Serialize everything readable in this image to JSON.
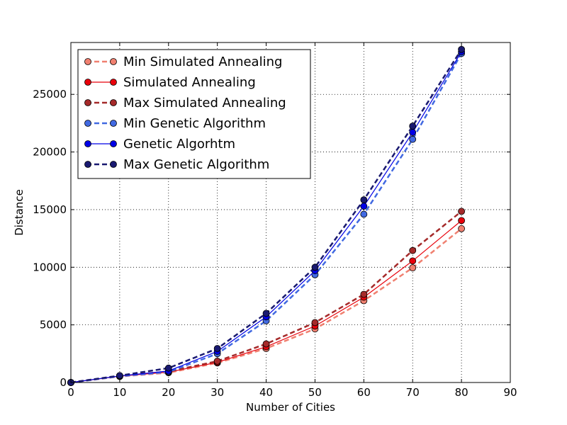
{
  "chart_data": {
    "type": "line",
    "xlabel": "Number of Cities",
    "ylabel": "Distance",
    "xlim": [
      0,
      90
    ],
    "ylim": [
      0,
      29500
    ],
    "xticks": [
      "0",
      "10",
      "20",
      "30",
      "40",
      "50",
      "60",
      "70",
      "80",
      "90"
    ],
    "yticks": [
      "0",
      "5000",
      "10000",
      "15000",
      "20000",
      "25000"
    ],
    "grid": true,
    "legend_position": "top-left",
    "x": [
      0,
      10,
      20,
      30,
      40,
      50,
      60,
      70,
      80
    ],
    "series": [
      {
        "name": "Min Simulated Annealing",
        "color": "#f08070",
        "line": "dashed",
        "values": [
          0,
          520,
          850,
          1700,
          2950,
          4650,
          7100,
          9950,
          13350
        ]
      },
      {
        "name": "Simulated Annealing",
        "color": "#e8000b",
        "line": "solid",
        "values": [
          0,
          550,
          900,
          1750,
          3100,
          4900,
          7400,
          10550,
          14050
        ]
      },
      {
        "name": "Max Simulated Annealing",
        "color": "#a52a2a",
        "line": "dashed",
        "values": [
          0,
          580,
          950,
          1850,
          3350,
          5200,
          7650,
          11450,
          14850
        ]
      },
      {
        "name": "Min Genetic Algorithm",
        "color": "#4169e1",
        "line": "dashed",
        "values": [
          0,
          540,
          920,
          2500,
          5350,
          9350,
          14600,
          21100,
          28550
        ]
      },
      {
        "name": "Genetic Algorhtm",
        "color": "#0000e6",
        "line": "solid",
        "values": [
          0,
          570,
          1000,
          2700,
          5700,
          9700,
          15300,
          21700,
          28700
        ]
      },
      {
        "name": "Max Genetic Algorithm",
        "color": "#191970",
        "line": "dashed",
        "values": [
          0,
          600,
          1250,
          2950,
          6000,
          10000,
          15850,
          22250,
          28900
        ]
      }
    ]
  }
}
